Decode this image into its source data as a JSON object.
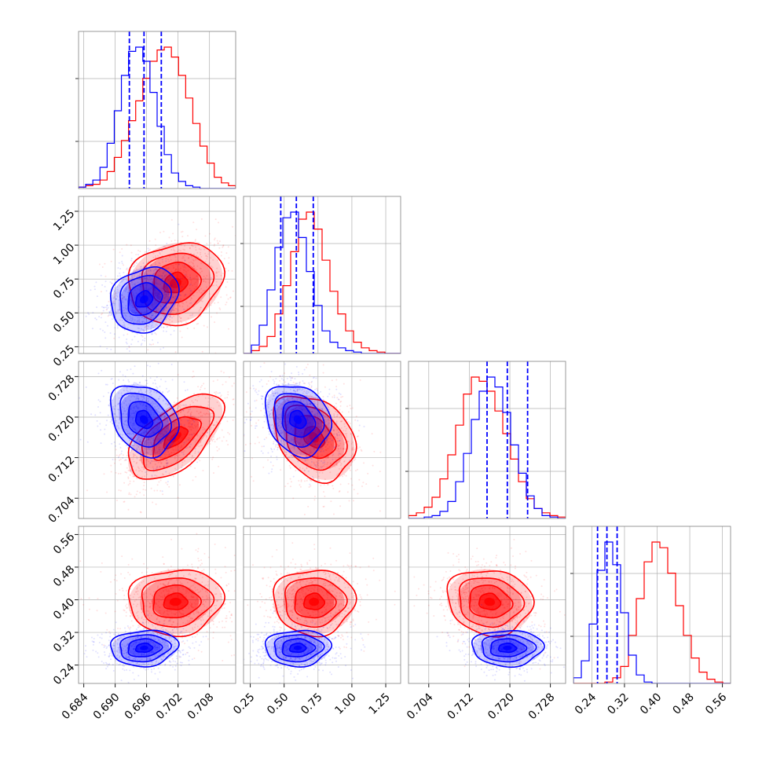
{
  "figure": {
    "type": "corner",
    "colors": {
      "red": "#ff0000",
      "blue": "#0000ff",
      "grid": "#b0b0b0",
      "axes": "#808080"
    }
  },
  "chart_data": {
    "type": "corner",
    "parameters": [
      {
        "range": [
          0.683,
          0.713
        ],
        "ticks": [
          "0.684",
          "0.690",
          "0.696",
          "0.702",
          "0.708"
        ],
        "tick_values": [
          0.684,
          0.69,
          0.696,
          0.702,
          0.708
        ]
      },
      {
        "range": [
          0.2,
          1.36
        ],
        "ticks": [
          "0.25",
          "0.50",
          "0.75",
          "1.00",
          "1.25"
        ],
        "tick_values": [
          0.25,
          0.5,
          0.75,
          1.0,
          1.25
        ]
      },
      {
        "range": [
          0.7,
          0.731
        ],
        "ticks": [
          "0.704",
          "0.712",
          "0.720",
          "0.728"
        ],
        "tick_values": [
          0.704,
          0.712,
          0.72,
          0.728
        ]
      },
      {
        "range": [
          0.195,
          0.58
        ],
        "ticks": [
          "0.24",
          "0.32",
          "0.40",
          "0.48",
          "0.56"
        ],
        "tick_values": [
          0.24,
          0.32,
          0.4,
          0.48,
          0.56
        ]
      }
    ],
    "series": [
      {
        "color": "red",
        "means": [
          0.7015,
          0.72,
          0.716,
          0.395
        ],
        "sds": [
          0.0045,
          0.15,
          0.0042,
          0.04
        ],
        "correlations": {
          "0-1": 0.15,
          "0-2": 0.6,
          "0-3": 0.05,
          "1-2": -0.3,
          "1-3": 0.0,
          "2-3": -0.1
        },
        "histograms": [
          {
            "edges": [
              0.683,
              0.713
            ],
            "counts": [
              0.01,
              0.02,
              0.03,
              0.06,
              0.12,
              0.22,
              0.34,
              0.48,
              0.62,
              0.78,
              0.9,
              0.98,
              1.0,
              0.93,
              0.8,
              0.64,
              0.46,
              0.3,
              0.18,
              0.08,
              0.04,
              0.02
            ]
          },
          {
            "edges": [
              0.2,
              1.36
            ],
            "counts": [
              0.0,
              0.02,
              0.05,
              0.12,
              0.28,
              0.48,
              0.72,
              0.95,
              1.0,
              0.88,
              0.66,
              0.44,
              0.28,
              0.16,
              0.08,
              0.04,
              0.02,
              0.01,
              0.0,
              0.0
            ]
          },
          {
            "edges": [
              0.7,
              0.731
            ],
            "counts": [
              0.02,
              0.04,
              0.08,
              0.15,
              0.28,
              0.45,
              0.66,
              0.88,
              1.0,
              0.97,
              0.9,
              0.76,
              0.6,
              0.42,
              0.26,
              0.14,
              0.07,
              0.04,
              0.02,
              0.01
            ]
          },
          {
            "edges": [
              0.195,
              0.58
            ],
            "counts": [
              0.0,
              0.0,
              0.0,
              0.0,
              0.01,
              0.04,
              0.12,
              0.34,
              0.6,
              0.86,
              1.0,
              0.96,
              0.78,
              0.55,
              0.34,
              0.18,
              0.08,
              0.03,
              0.01,
              0.0
            ]
          }
        ]
      },
      {
        "color": "blue",
        "means": [
          0.6955,
          0.6,
          0.7195,
          0.282
        ],
        "sds": [
          0.0032,
          0.12,
          0.0035,
          0.022
        ],
        "correlations": {
          "0-1": 0.2,
          "0-2": -0.25,
          "0-3": 0.1,
          "1-2": -0.2,
          "1-3": 0.05,
          "2-3": 0.0
        },
        "quantile_lines": [
          [
            0.6927,
            0.6955,
            0.6988
          ],
          [
            0.475,
            0.59,
            0.715
          ],
          [
            0.7155,
            0.7195,
            0.7235
          ],
          [
            0.254,
            0.277,
            0.302
          ]
        ],
        "histograms": [
          {
            "edges": [
              0.683,
              0.713
            ],
            "counts": [
              0.01,
              0.03,
              0.06,
              0.15,
              0.32,
              0.55,
              0.8,
              0.97,
              1.0,
              0.9,
              0.68,
              0.44,
              0.24,
              0.11,
              0.05,
              0.02,
              0.01,
              0.0,
              0.0,
              0.0,
              0.0,
              0.0
            ]
          },
          {
            "edges": [
              0.2,
              1.36
            ],
            "counts": [
              0.0,
              0.06,
              0.2,
              0.45,
              0.75,
              0.96,
              1.0,
              0.82,
              0.58,
              0.34,
              0.16,
              0.08,
              0.04,
              0.02,
              0.01,
              0.0,
              0.0,
              0.0,
              0.0,
              0.0
            ]
          },
          {
            "edges": [
              0.7,
              0.731
            ],
            "counts": [
              0.0,
              0.0,
              0.01,
              0.02,
              0.05,
              0.12,
              0.26,
              0.46,
              0.7,
              0.9,
              1.0,
              0.93,
              0.75,
              0.52,
              0.32,
              0.16,
              0.07,
              0.02,
              0.01,
              0.0
            ]
          },
          {
            "edges": [
              0.195,
              0.58
            ],
            "counts": [
              0.04,
              0.16,
              0.42,
              0.8,
              1.0,
              0.84,
              0.5,
              0.2,
              0.06,
              0.01,
              0.0,
              0.0,
              0.0,
              0.0,
              0.0,
              0.0,
              0.0,
              0.0,
              0.0,
              0.0
            ]
          }
        ]
      }
    ],
    "grid": true,
    "legend": "none"
  }
}
